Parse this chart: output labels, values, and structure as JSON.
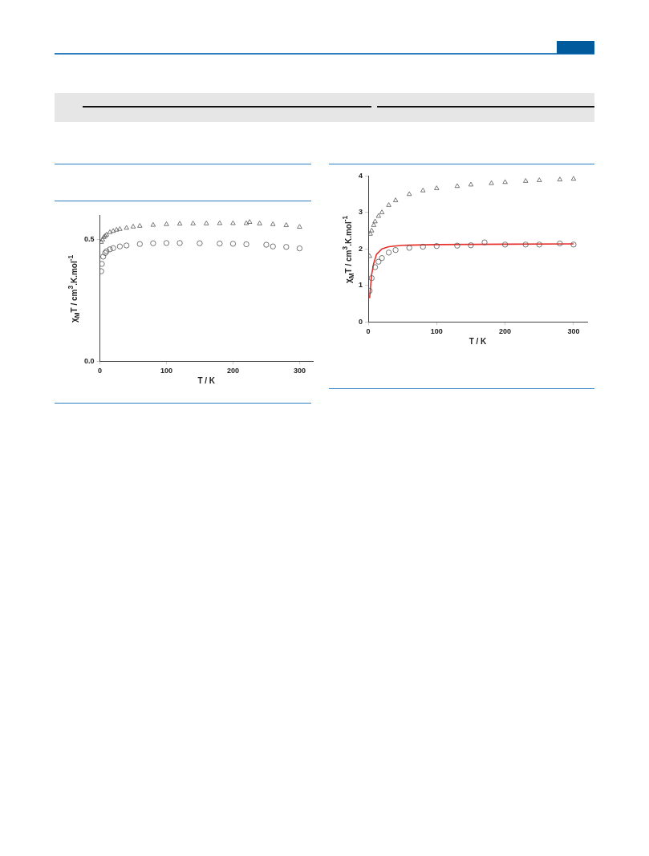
{
  "chart_data": [
    {
      "type": "scatter",
      "xlabel": "T / K",
      "ylabel": "χ$_{M}$T / cm$^{3}$.K.mol$^{-1}$",
      "xlim": [
        0,
        320
      ],
      "xticks": [
        0,
        100,
        200,
        300
      ],
      "ylim": [
        0,
        0.6
      ],
      "yticks": [
        {
          "value": 0,
          "label": "0.0"
        },
        {
          "value": 0.5,
          "label": "0.5"
        }
      ],
      "grid": false,
      "legend": false,
      "series": [
        {
          "marker": "triangle",
          "color": "#555555",
          "x": [
            2,
            4,
            6,
            8,
            10,
            15,
            20,
            25,
            30,
            40,
            50,
            60,
            80,
            100,
            120,
            140,
            160,
            180,
            200,
            220,
            225,
            240,
            260,
            280,
            300
          ],
          "values": [
            0.49,
            0.5,
            0.51,
            0.515,
            0.52,
            0.53,
            0.535,
            0.54,
            0.543,
            0.548,
            0.553,
            0.556,
            0.56,
            0.563,
            0.565,
            0.566,
            0.566,
            0.567,
            0.567,
            0.567,
            0.572,
            0.566,
            0.563,
            0.559,
            0.552
          ]
        },
        {
          "marker": "circle",
          "color": "#555555",
          "x": [
            2,
            3,
            5,
            8,
            10,
            15,
            20,
            30,
            40,
            60,
            80,
            100,
            120,
            150,
            180,
            200,
            220,
            250,
            260,
            280,
            300
          ],
          "values": [
            0.37,
            0.4,
            0.43,
            0.445,
            0.452,
            0.46,
            0.465,
            0.472,
            0.476,
            0.482,
            0.485,
            0.486,
            0.486,
            0.485,
            0.484,
            0.483,
            0.481,
            0.479,
            0.472,
            0.47,
            0.464
          ]
        }
      ]
    },
    {
      "type": "scatter",
      "xlabel": "T / K",
      "ylabel": "χ$_{M}$T / cm$^{3}$.K.mol$^{-1}$",
      "xlim": [
        0,
        320
      ],
      "xticks": [
        0,
        100,
        200,
        300
      ],
      "ylim": [
        0,
        4
      ],
      "yticks": [
        0,
        1,
        2,
        3,
        4
      ],
      "grid": false,
      "legend": false,
      "series": [
        {
          "marker": "triangle",
          "color": "#555555",
          "x": [
            2,
            3,
            5,
            8,
            10,
            15,
            20,
            30,
            40,
            60,
            80,
            100,
            130,
            150,
            180,
            200,
            230,
            250,
            280,
            300
          ],
          "values": [
            1.8,
            2.41,
            2.5,
            2.65,
            2.75,
            2.9,
            3.0,
            3.2,
            3.33,
            3.5,
            3.6,
            3.66,
            3.72,
            3.76,
            3.8,
            3.83,
            3.86,
            3.88,
            3.9,
            3.92
          ]
        },
        {
          "marker": "circle",
          "color": "#555555",
          "x": [
            2,
            5,
            10,
            15,
            20,
            30,
            40,
            60,
            80,
            100,
            130,
            150,
            170,
            200,
            230,
            250,
            280,
            300
          ],
          "values": [
            0.85,
            1.2,
            1.5,
            1.65,
            1.75,
            1.9,
            1.97,
            2.03,
            2.06,
            2.08,
            2.09,
            2.1,
            2.18,
            2.12,
            2.12,
            2.12,
            2.15,
            2.12
          ]
        },
        {
          "type": "line",
          "marker": "none",
          "line_style": "solid",
          "color": "#e8302a",
          "x": [
            2,
            5,
            8,
            12,
            20,
            30,
            50,
            100,
            200,
            300
          ],
          "values": [
            0.65,
            1.3,
            1.6,
            1.85,
            2.0,
            2.06,
            2.1,
            2.12,
            2.13,
            2.14
          ]
        }
      ]
    }
  ]
}
